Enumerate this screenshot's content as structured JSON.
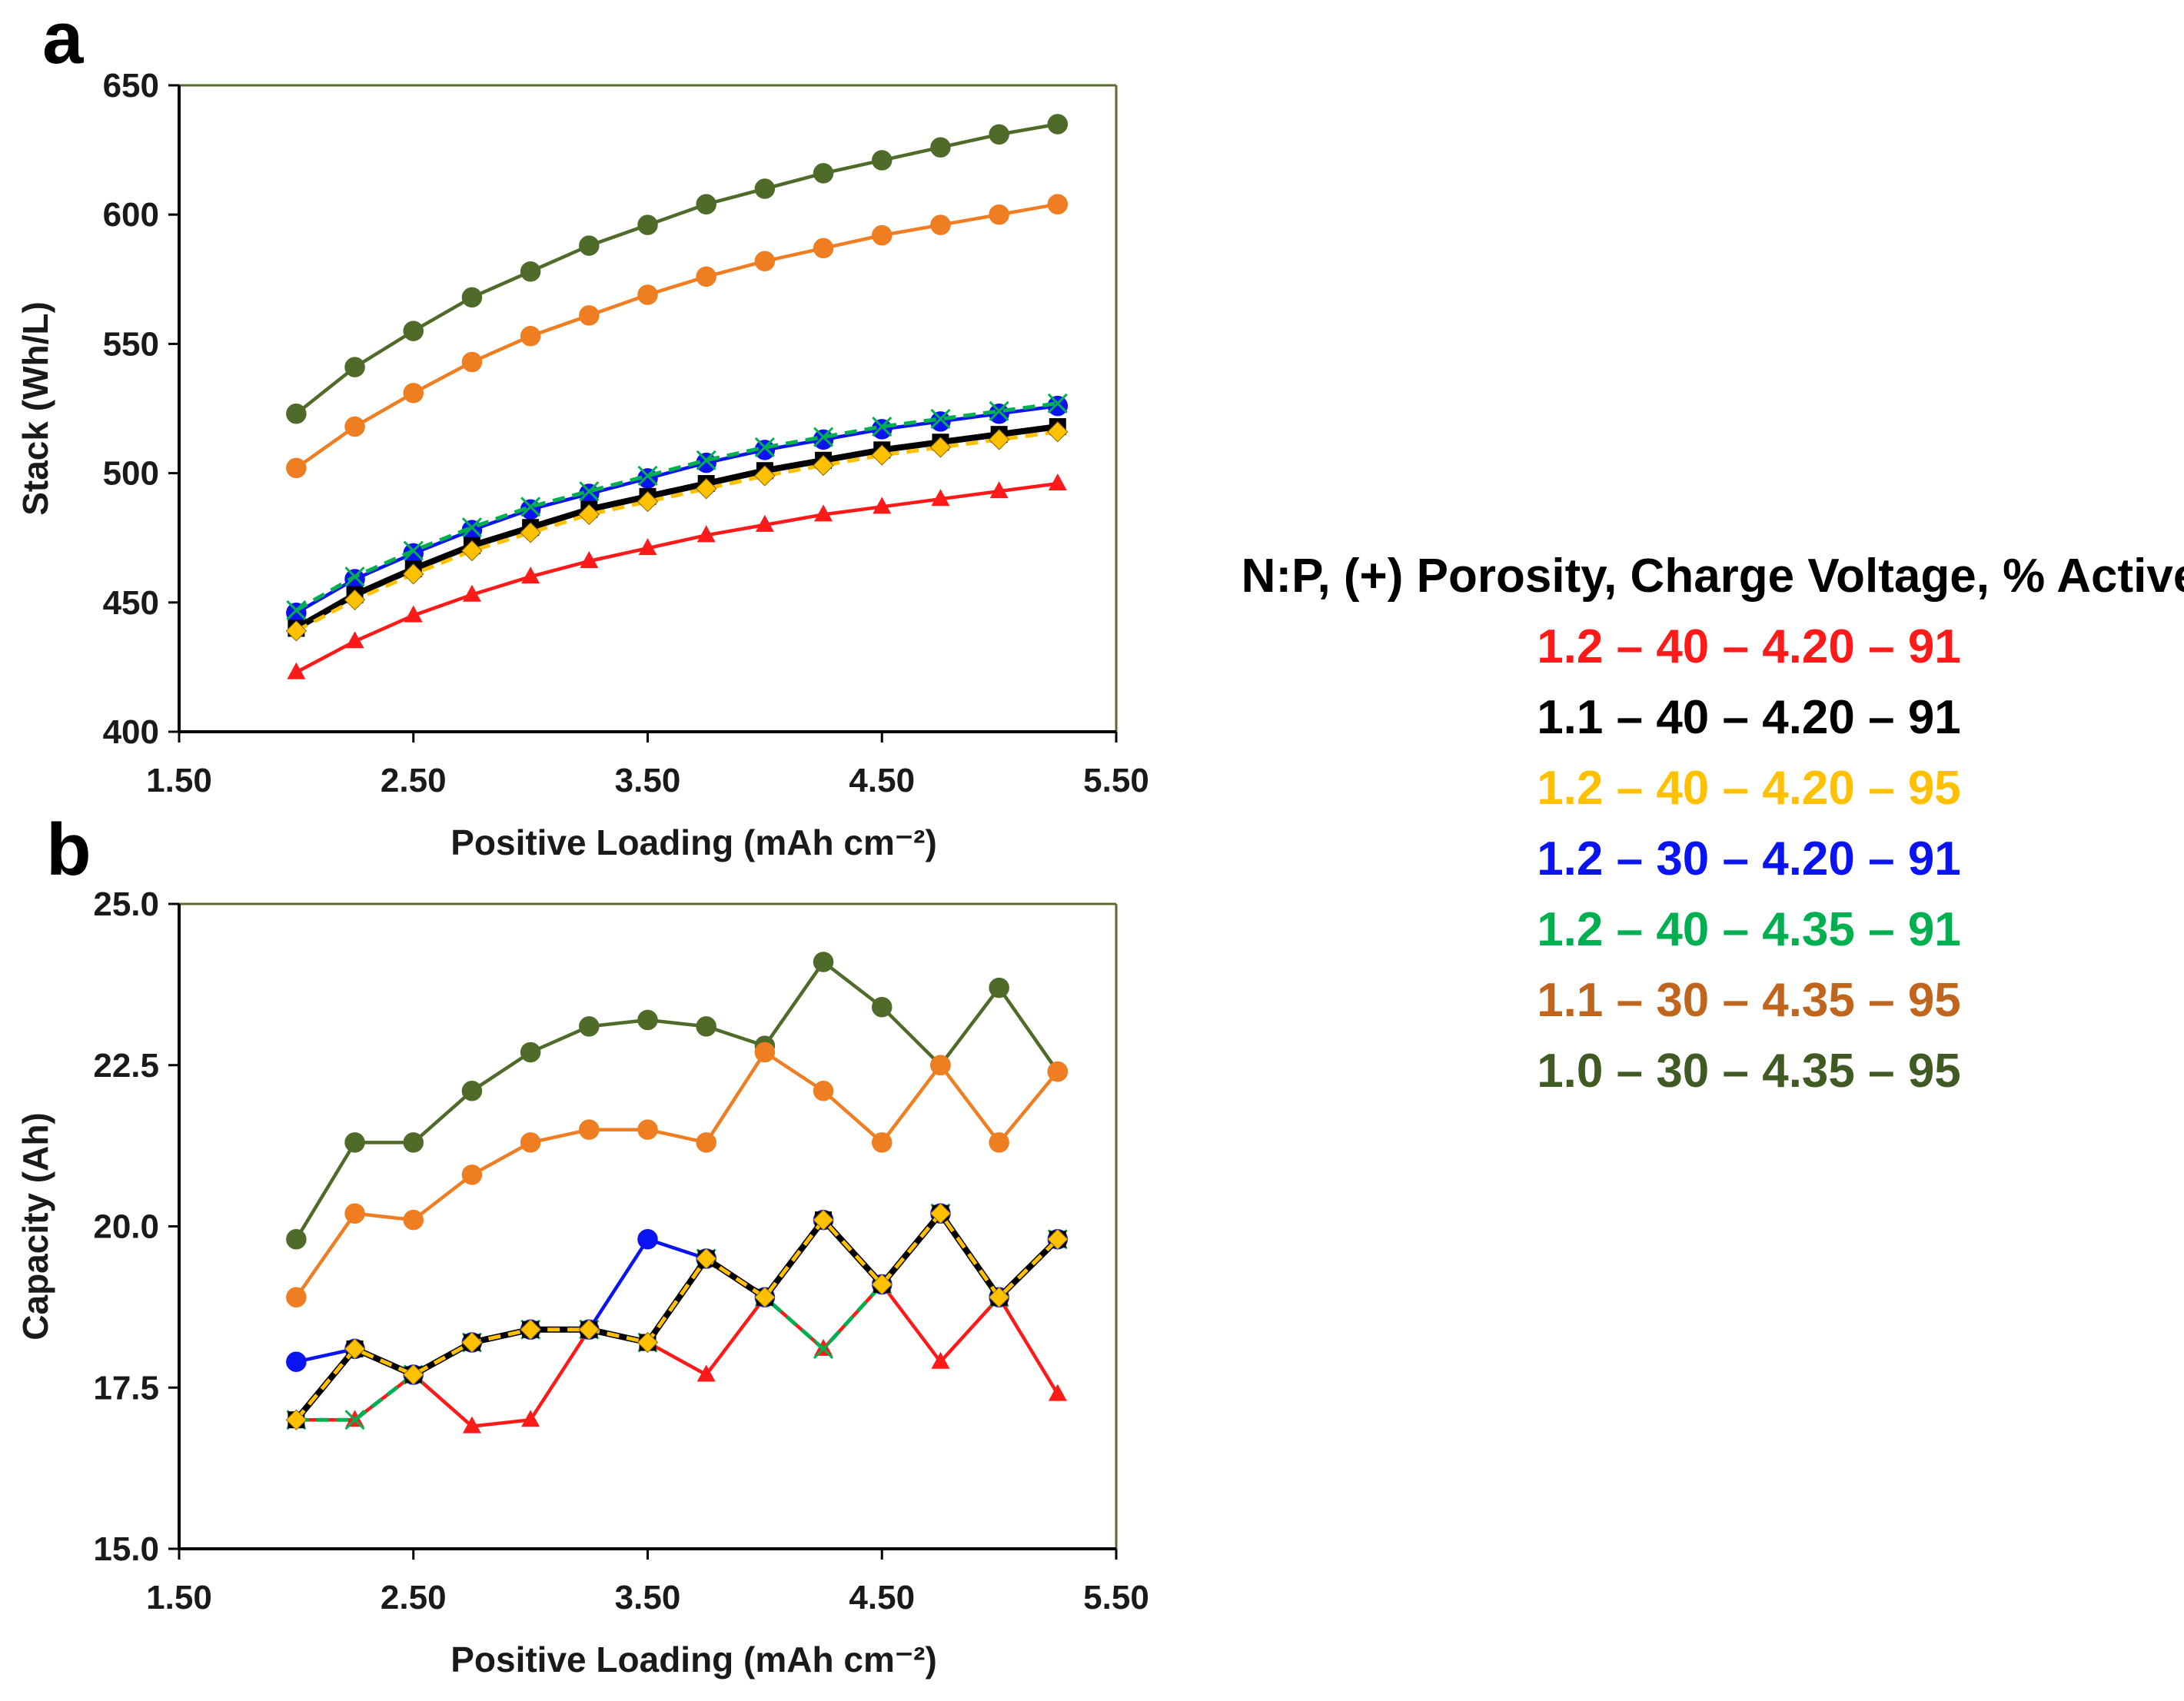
{
  "legend": {
    "title": "N:P, (+) Porosity, Charge Voltage, % Active"
  },
  "chart_data": [
    {
      "panel": "a",
      "type": "line",
      "xlabel": "Positive Loading (mAh cm⁻²)",
      "ylabel": "Stack (Wh/L)",
      "xlim": [
        1.5,
        5.5
      ],
      "ylim": [
        400,
        650
      ],
      "xticks": [
        "1.50",
        "2.50",
        "3.50",
        "4.50",
        "5.50"
      ],
      "yticks": [
        "400",
        "450",
        "500",
        "550",
        "600",
        "650"
      ],
      "x": [
        2.0,
        2.25,
        2.5,
        2.75,
        3.0,
        3.25,
        3.5,
        3.75,
        4.0,
        4.25,
        4.5,
        4.75,
        5.0,
        5.25
      ],
      "series": [
        {
          "name": "1.2 – 40 – 4.20 – 91",
          "color": "#ff1a1a",
          "marker": "triangle",
          "dash": false,
          "values": [
            423,
            435,
            445,
            453,
            460,
            466,
            471,
            476,
            480,
            484,
            487,
            490,
            493,
            496
          ]
        },
        {
          "name": "1.1 – 40 – 4.20 – 91",
          "color": "#000000",
          "marker": "square",
          "dash": false,
          "values": [
            440,
            453,
            463,
            472,
            479,
            486,
            491,
            496,
            501,
            505,
            509,
            512,
            515,
            518
          ]
        },
        {
          "name": "1.2 – 40 – 4.20 – 95",
          "color": "#ffc000",
          "marker": "diamond",
          "dash": true,
          "values": [
            439,
            451,
            461,
            470,
            477,
            484,
            489,
            494,
            499,
            503,
            507,
            510,
            513,
            516
          ]
        },
        {
          "name": "1.2 – 30 – 4.20 – 91",
          "color": "#0a14f0",
          "marker": "circle",
          "dash": false,
          "values": [
            446,
            459,
            469,
            478,
            486,
            492,
            498,
            504,
            509,
            513,
            517,
            520,
            523,
            526
          ]
        },
        {
          "name": "1.2 – 40 – 4.35 – 91",
          "color": "#00b050",
          "marker": "x",
          "dash": true,
          "values": [
            447,
            460,
            470,
            479,
            487,
            493,
            499,
            505,
            510,
            514,
            518,
            521,
            524,
            527
          ]
        },
        {
          "name": "1.1 – 30 – 4.35 – 95",
          "color": "#ef7d22",
          "marker": "circle",
          "dash": false,
          "values": [
            502,
            518,
            531,
            543,
            553,
            561,
            569,
            576,
            582,
            587,
            592,
            596,
            600,
            604
          ]
        },
        {
          "name": "1.0 – 30 – 4.35 – 95",
          "color": "#4f6b2a",
          "marker": "circle",
          "dash": false,
          "values": [
            523,
            541,
            555,
            568,
            578,
            588,
            596,
            604,
            610,
            616,
            621,
            626,
            631,
            635
          ]
        }
      ]
    },
    {
      "panel": "b",
      "type": "line",
      "xlabel": "Positive Loading (mAh cm⁻²)",
      "ylabel": "Capacity (Ah)",
      "xlim": [
        1.5,
        5.5
      ],
      "ylim": [
        15.0,
        25.0
      ],
      "xticks": [
        "1.50",
        "2.50",
        "3.50",
        "4.50",
        "5.50"
      ],
      "yticks": [
        "15.0",
        "17.5",
        "20.0",
        "22.5",
        "25.0"
      ],
      "x": [
        2.0,
        2.25,
        2.5,
        2.75,
        3.0,
        3.25,
        3.5,
        3.75,
        4.0,
        4.25,
        4.5,
        4.75,
        5.0,
        5.25
      ],
      "series": [
        {
          "name": "1.2 – 40 – 4.20 – 91",
          "color": "#ff1a1a",
          "marker": "triangle",
          "dash": false,
          "values": [
            17.0,
            17.0,
            17.7,
            16.9,
            17.0,
            18.4,
            18.2,
            17.7,
            18.9,
            18.1,
            19.1,
            17.9,
            18.9,
            17.4
          ]
        },
        {
          "name": "1.1 – 40 – 4.20 – 91",
          "color": "#000000",
          "marker": "square",
          "dash": false,
          "values": [
            17.0,
            18.1,
            17.7,
            18.2,
            18.4,
            18.4,
            18.2,
            19.5,
            18.9,
            20.1,
            19.1,
            20.2,
            18.9,
            19.8
          ]
        },
        {
          "name": "1.2 – 40 – 4.20 – 95",
          "color": "#ffc000",
          "marker": "diamond",
          "dash": true,
          "values": [
            17.0,
            18.1,
            17.7,
            18.2,
            18.4,
            18.4,
            18.2,
            19.5,
            18.9,
            20.1,
            19.1,
            20.2,
            18.9,
            19.8
          ]
        },
        {
          "name": "1.2 – 30 – 4.20 – 91",
          "color": "#0a14f0",
          "marker": "circle",
          "dash": false,
          "values": [
            17.9,
            18.1,
            17.7,
            18.2,
            18.4,
            18.4,
            19.8,
            19.5,
            18.9,
            20.1,
            19.1,
            20.2,
            18.9,
            19.8
          ]
        },
        {
          "name": "1.2 – 40 – 4.35 – 91",
          "color": "#00b050",
          "marker": "x",
          "dash": true,
          "values": [
            17.0,
            17.0,
            17.7,
            18.2,
            18.4,
            18.4,
            18.2,
            19.5,
            18.9,
            18.1,
            19.1,
            20.2,
            18.9,
            19.8
          ]
        },
        {
          "name": "1.1 – 30 – 4.35 – 95",
          "color": "#ef7d22",
          "marker": "circle",
          "dash": false,
          "values": [
            18.9,
            20.2,
            20.1,
            20.8,
            21.3,
            21.5,
            21.5,
            21.3,
            22.7,
            22.1,
            21.3,
            22.5,
            21.3,
            22.4
          ]
        },
        {
          "name": "1.0 – 30 – 4.35 – 95",
          "color": "#4f6b2a",
          "marker": "circle",
          "dash": false,
          "values": [
            19.8,
            21.3,
            21.3,
            22.1,
            22.7,
            23.1,
            23.2,
            23.1,
            22.8,
            24.1,
            23.4,
            22.5,
            23.7,
            22.4
          ]
        }
      ]
    }
  ]
}
